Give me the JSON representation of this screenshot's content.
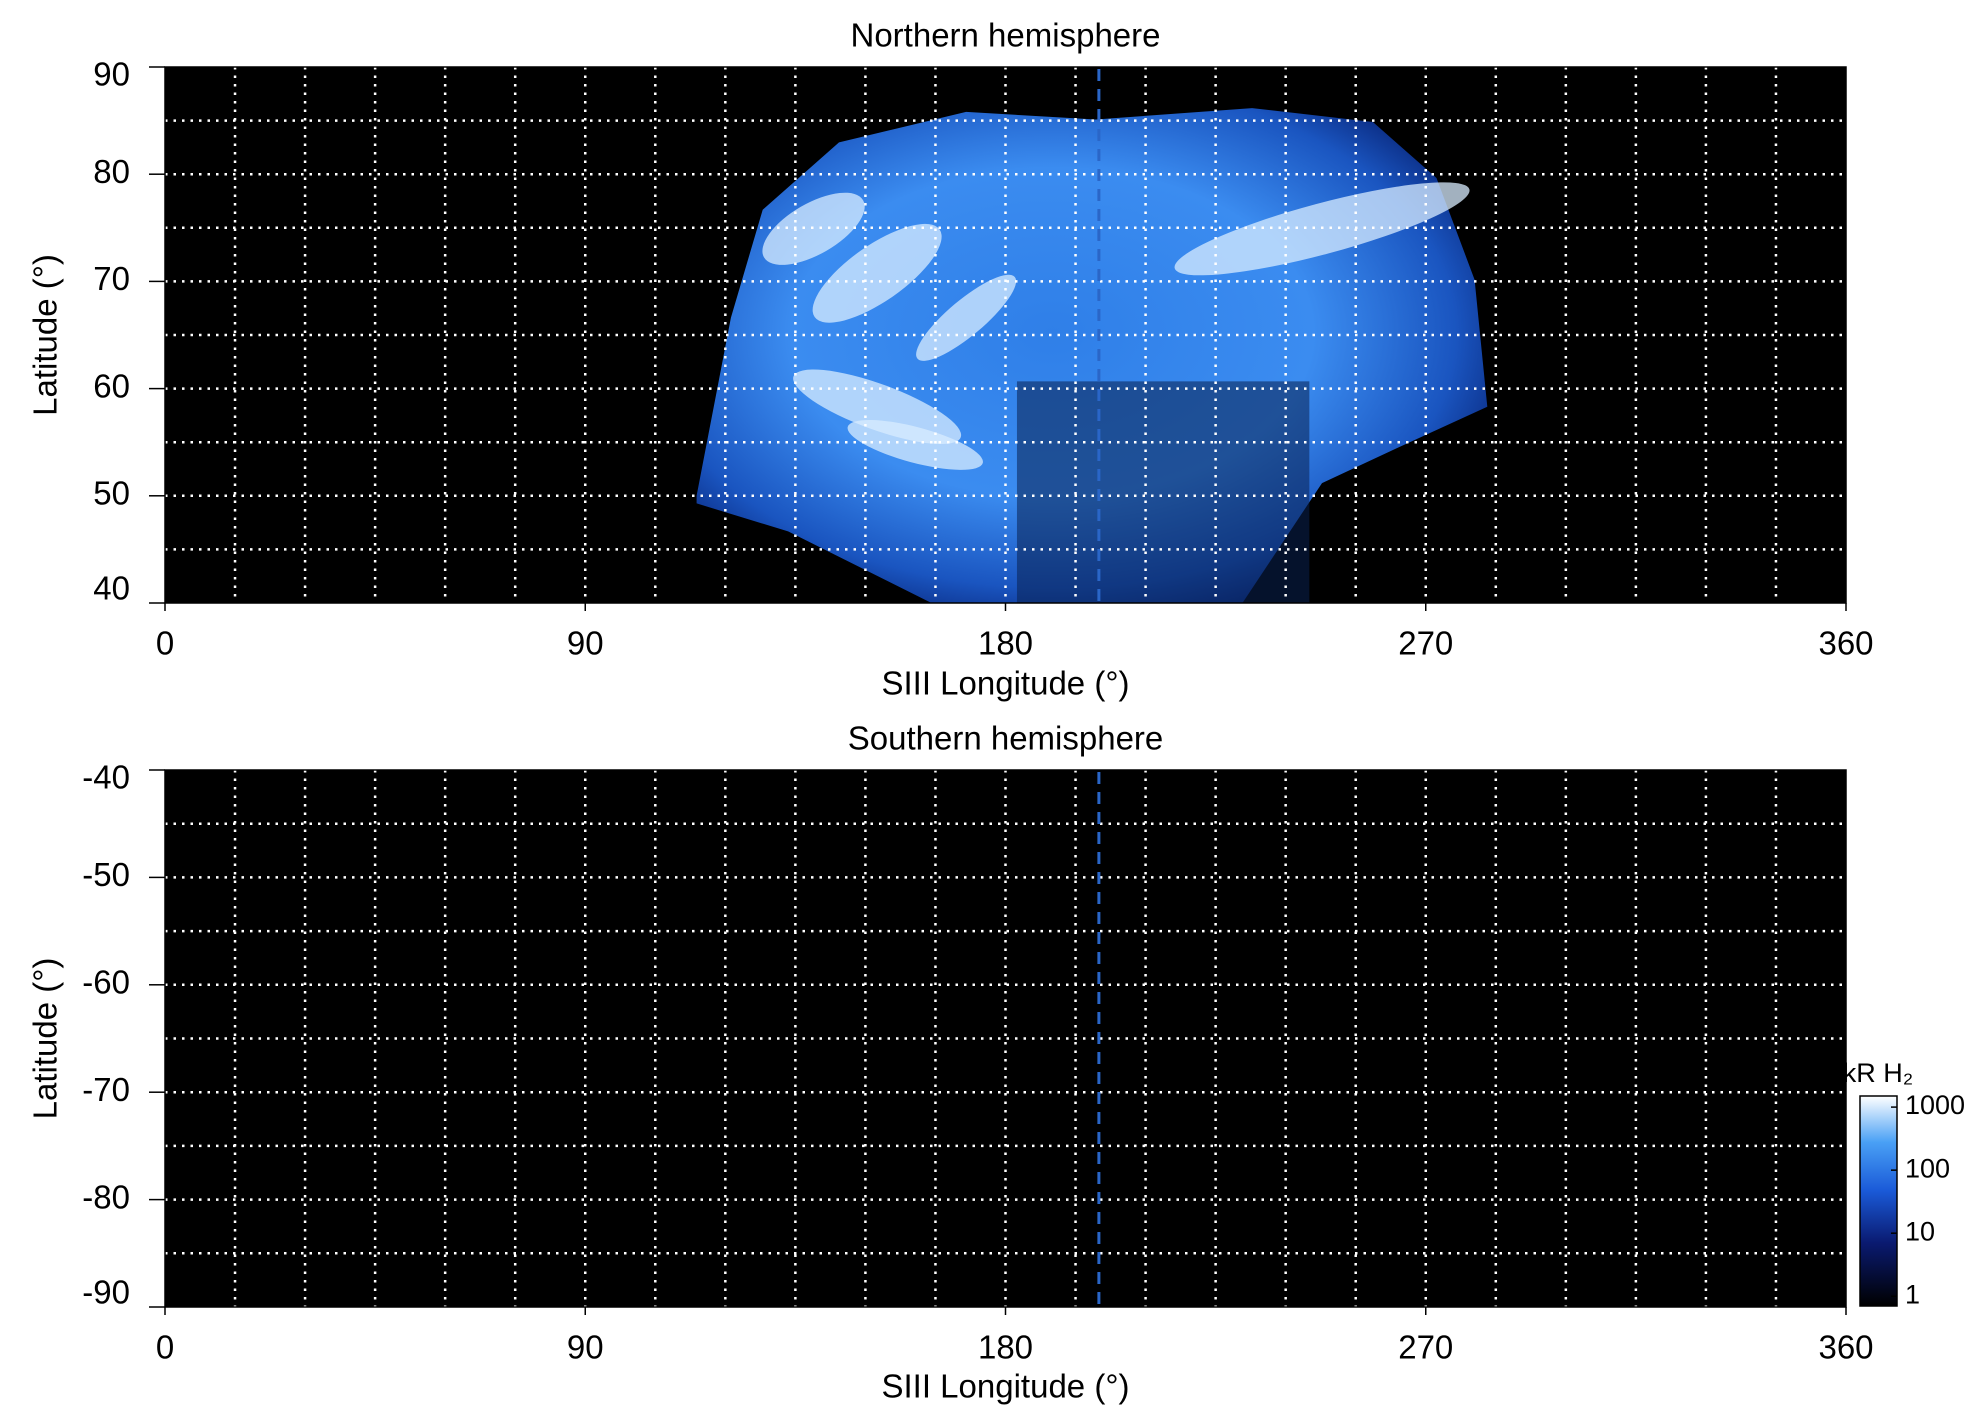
{
  "chart_data": [
    {
      "type": "heatmap",
      "title": "Northern hemisphere",
      "xlabel": "SIII Longitude (°)",
      "ylabel": "Latitude (°)",
      "xlim": [
        0,
        360
      ],
      "xticks": [
        0,
        90,
        180,
        270,
        360
      ],
      "ylim": [
        40,
        90
      ],
      "yticks": [
        40,
        50,
        60,
        70,
        80,
        90
      ],
      "xgrid": [
        15,
        30,
        45,
        60,
        75,
        90,
        105,
        120,
        135,
        150,
        165,
        180,
        195,
        210,
        225,
        240,
        255,
        270,
        285,
        300,
        315,
        330,
        345
      ],
      "ygrid": [
        45,
        50,
        55,
        60,
        65,
        70,
        75,
        80,
        85
      ],
      "marker_x": 200,
      "marker_color": "#2a66c8"
    },
    {
      "type": "heatmap",
      "title": "Southern hemisphere",
      "xlabel": "SIII Longitude (°)",
      "ylabel": "Latitude (°)",
      "xlim": [
        0,
        360
      ],
      "xticks": [
        0,
        90,
        180,
        270,
        360
      ],
      "ylim": [
        -90,
        -40
      ],
      "yticks": [
        -40,
        -50,
        -60,
        -70,
        -80,
        -90
      ],
      "xgrid": [
        15,
        30,
        45,
        60,
        75,
        90,
        105,
        120,
        135,
        150,
        165,
        180,
        195,
        210,
        225,
        240,
        255,
        270,
        285,
        300,
        315,
        330,
        345
      ],
      "ygrid": [
        -45,
        -50,
        -55,
        -60,
        -65,
        -70,
        -75,
        -80,
        -85
      ],
      "marker_x": 200,
      "marker_color": "#2a66c8",
      "colorbar": {
        "label": "kR H₂",
        "log": true,
        "lim": [
          0.7,
          1500
        ],
        "ticks": [
          1,
          10,
          100,
          1000
        ]
      }
    }
  ]
}
